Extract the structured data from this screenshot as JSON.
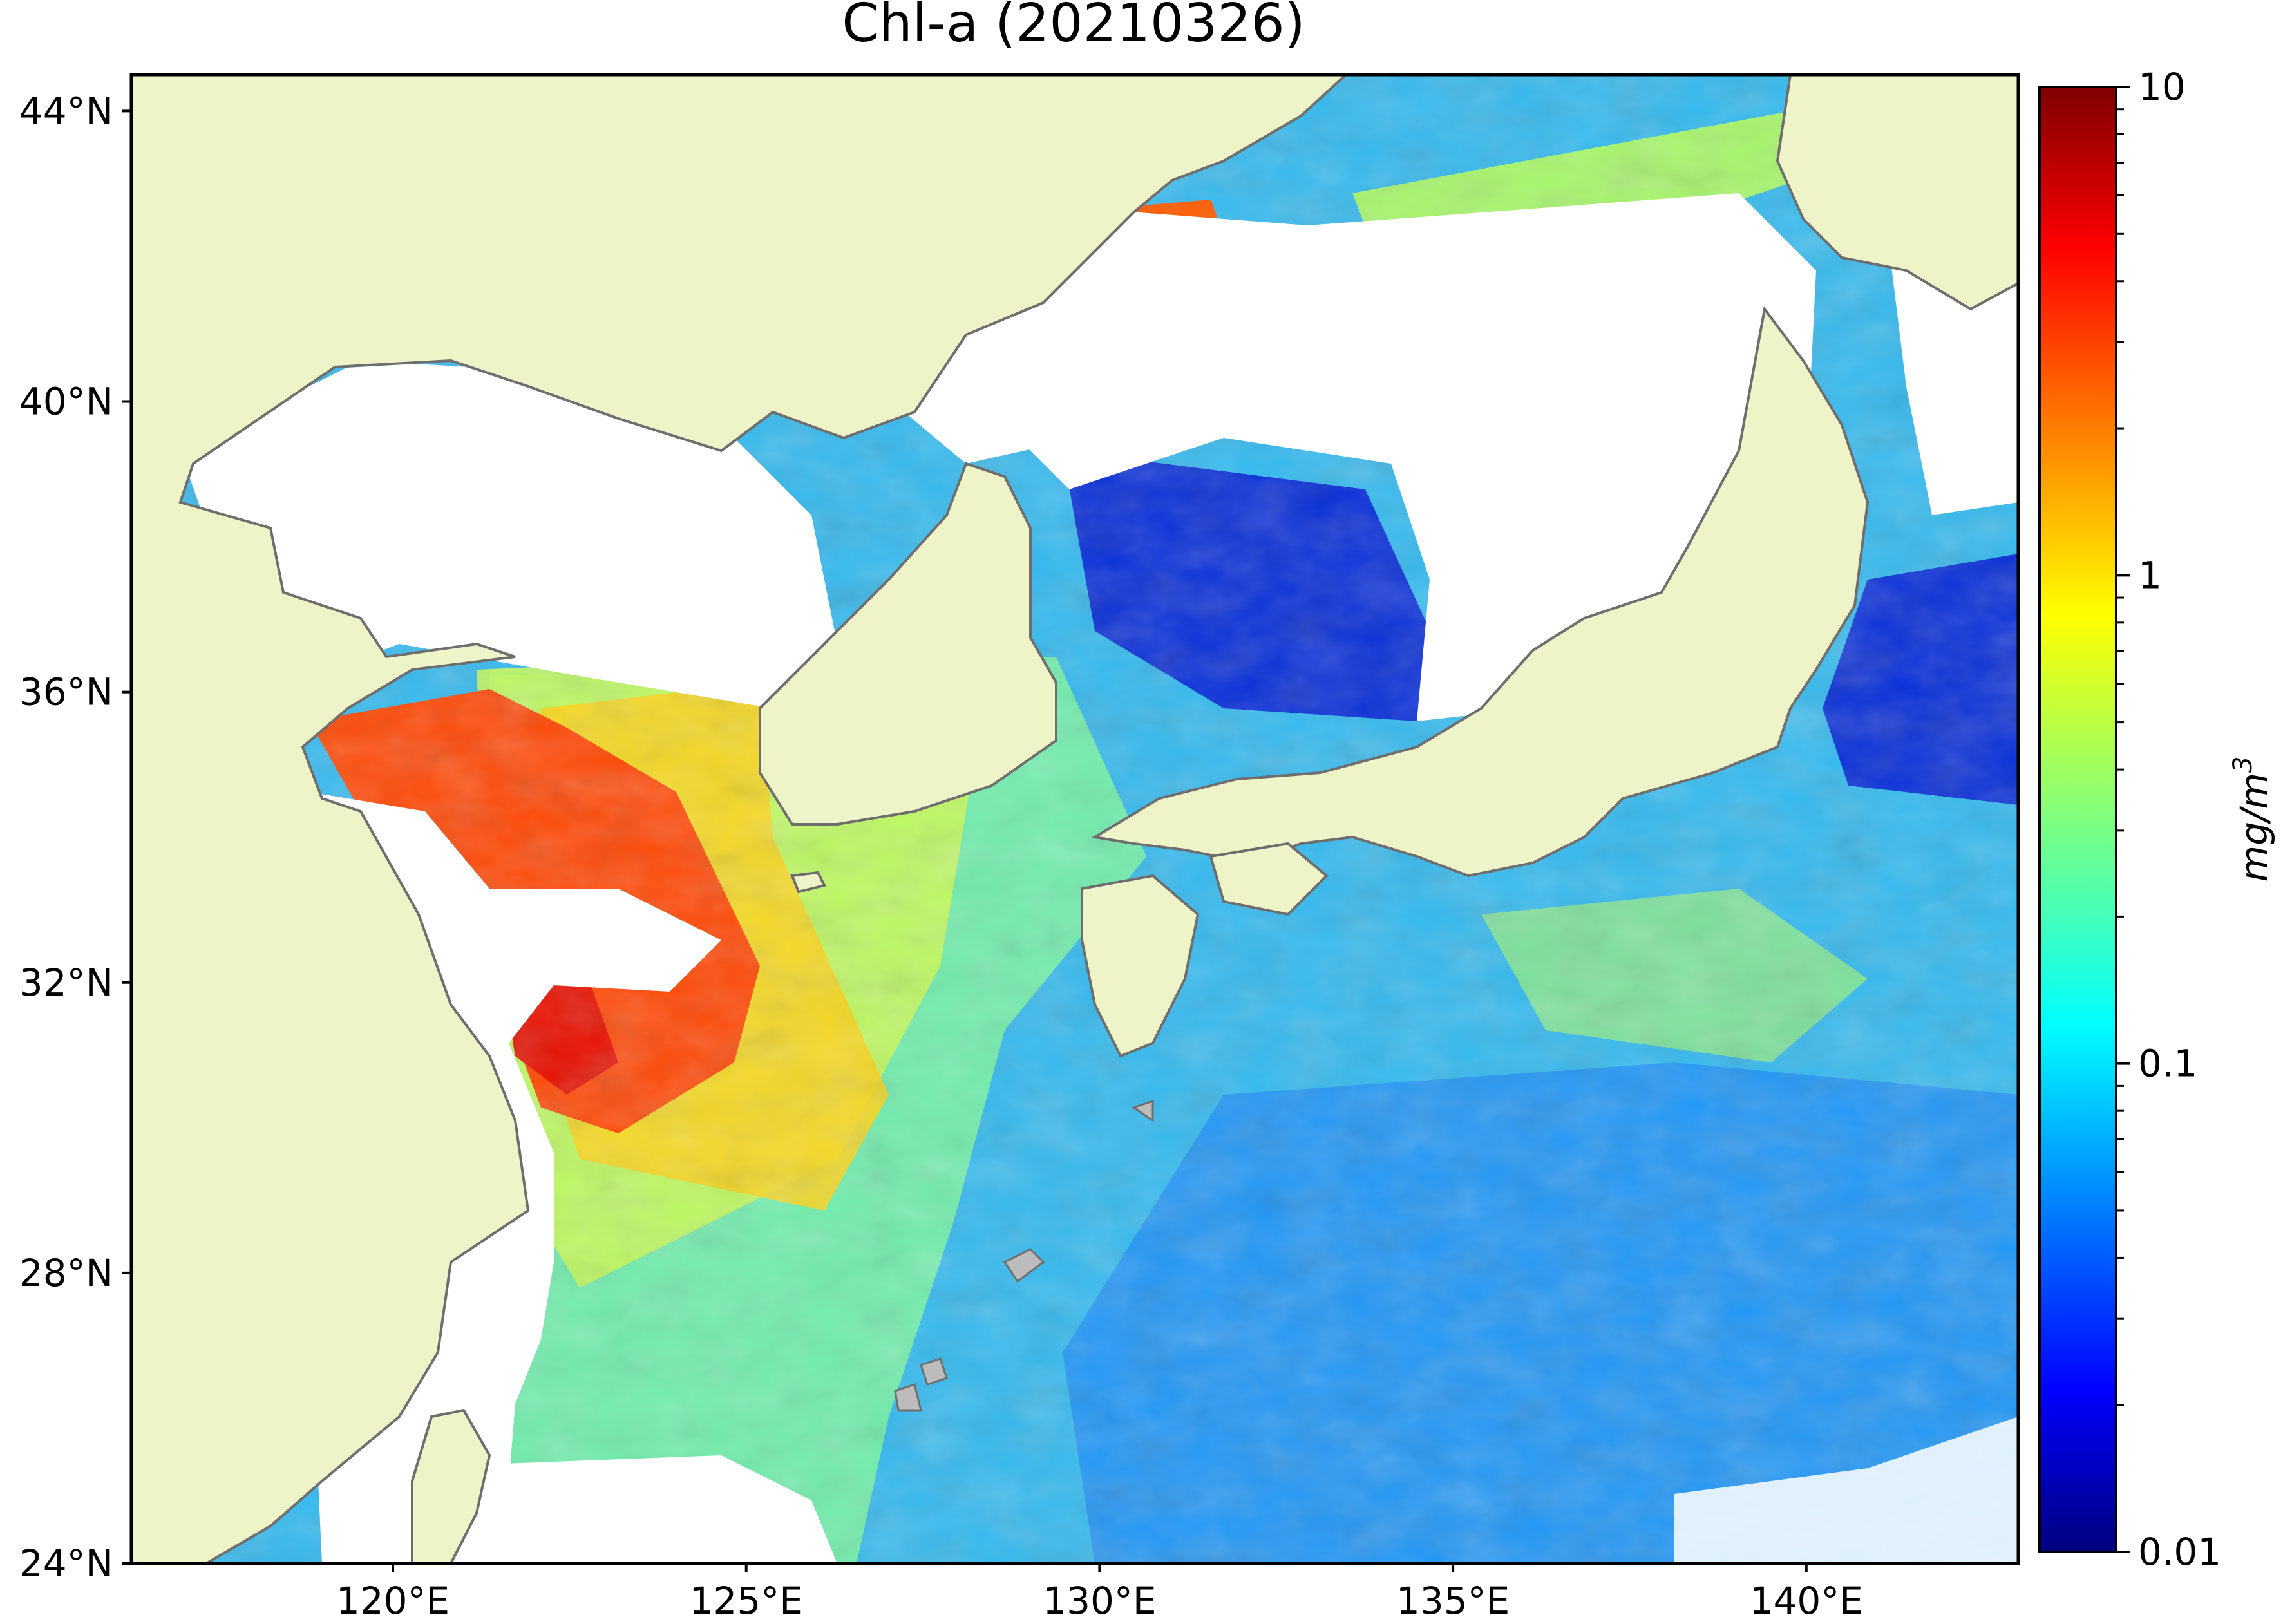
{
  "title": "Chl-a (20210326)",
  "map": {
    "lon_range": [
      116.3,
      143.0
    ],
    "lat_range": [
      24.0,
      44.5
    ],
    "lat_ticks": [
      {
        "value": 24,
        "label": "24°N"
      },
      {
        "value": 28,
        "label": "28°N"
      },
      {
        "value": 32,
        "label": "32°N"
      },
      {
        "value": 36,
        "label": "36°N"
      },
      {
        "value": 40,
        "label": "40°N"
      },
      {
        "value": 44,
        "label": "44°N"
      }
    ],
    "lon_ticks": [
      {
        "value": 120,
        "label": "120°E"
      },
      {
        "value": 125,
        "label": "125°E"
      },
      {
        "value": 130,
        "label": "130°E"
      },
      {
        "value": 135,
        "label": "135°E"
      },
      {
        "value": 140,
        "label": "140°E"
      }
    ],
    "colors": {
      "land": "#eef3c8",
      "coastline": "#6e6e6e",
      "no_data": "#ffffff"
    }
  },
  "colorbar": {
    "label": "mg/m",
    "label_superscript": "3",
    "scale": "log",
    "range": [
      0.01,
      10
    ],
    "ticks": [
      {
        "value": 10,
        "label": "10"
      },
      {
        "value": 1,
        "label": "1"
      },
      {
        "value": 0.1,
        "label": "0.1"
      },
      {
        "value": 0.01,
        "label": "0.01"
      }
    ],
    "colormap": "jet",
    "colormap_stops": [
      "#00007f",
      "#0000ff",
      "#007fff",
      "#00ffff",
      "#7fff7f",
      "#ffff00",
      "#ff7f00",
      "#ff0000",
      "#7f0000"
    ]
  }
}
